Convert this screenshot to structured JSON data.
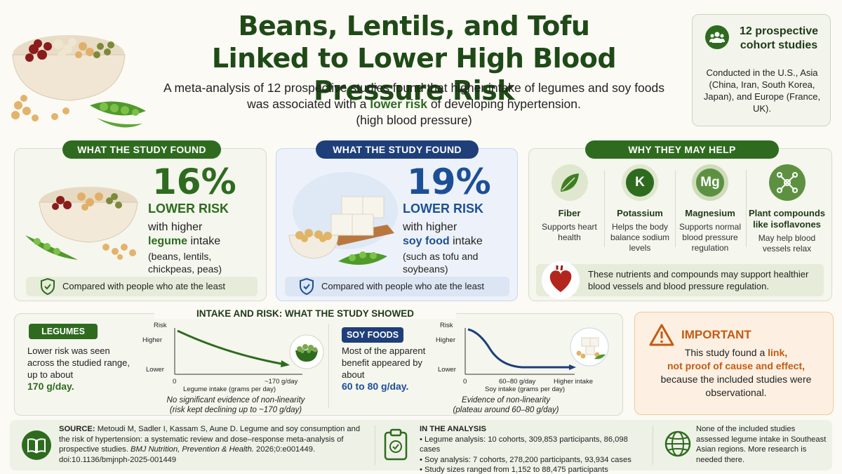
{
  "header": {
    "title_line1": "Beans, Lentils, and Tofu",
    "title_line2": "Linked to Lower High Blood Pressure Risk",
    "subtitle_part1": "A meta-analysis of 12 prospective studies found that higher intake of legumes and soy foods was associated with a ",
    "subtitle_highlight": "lower risk",
    "subtitle_part2": " of developing hypertension.",
    "subtitle_line3": "(high blood pressure)"
  },
  "cohort": {
    "icon": "people-icon",
    "title": "12 prospective cohort studies",
    "text": "Conducted in the U.S., Asia (China, Iran, South Korea, Japan), and Europe (France, UK)."
  },
  "legume_panel": {
    "label": "WHAT THE STUDY FOUND",
    "percent": "16%",
    "lower_risk": "LOWER RISK",
    "with_higher": "with higher",
    "food": "legume",
    "intake": " intake",
    "examples": "(beans, lentils, chickpeas, peas)",
    "compared": "Compared with people who ate the least",
    "accent": "#2e6b1f"
  },
  "soy_panel": {
    "label": "WHAT THE STUDY FOUND",
    "percent": "19%",
    "lower_risk": "LOWER RISK",
    "with_higher": "with higher",
    "food": "soy food",
    "intake": " intake",
    "examples": "(such as tofu and soybeans)",
    "compared": "Compared with people who ate the least",
    "accent": "#1d4f96"
  },
  "why_panel": {
    "label": "WHY THEY MAY HELP",
    "nutrients": [
      {
        "icon": "leaf-icon",
        "title": "Fiber",
        "text": "Supports heart health"
      },
      {
        "icon": "potassium-icon",
        "symbol": "K",
        "title": "Potassium",
        "text": "Helps the body balance sodium levels"
      },
      {
        "icon": "magnesium-icon",
        "symbol": "Mg",
        "title": "Magnesium",
        "text": "Supports normal blood pressure regulation"
      },
      {
        "icon": "molecule-icon",
        "title": "Plant compounds like isoflavones",
        "text": "May help blood vessels relax"
      }
    ],
    "summary": "These nutrients and compounds may support healthier blood vessels and blood pressure regulation."
  },
  "intake_section": {
    "title": "INTAKE AND RISK: WHAT THE STUDY SHOWED",
    "legumes": {
      "tag": "LEGUMES",
      "text": "Lower risk was seen across the studied range, up to about",
      "value": "170 g/day.",
      "note_line1": "No significant evidence of non-linearity",
      "note_line2": "(risk kept declining up to ~170 g/day)"
    },
    "soy": {
      "tag": "SOY FOODS",
      "text": "Most of the apparent benefit appeared by about",
      "value": "60 to 80 g/day.",
      "note_line1": "Evidence of non-linearity",
      "note_line2": "(plateau around 60–80 g/day)"
    }
  },
  "chart_data": [
    {
      "type": "line",
      "ylabel": "Risk",
      "xlabel": "Legume intake (grams per day)",
      "y_ticks": [
        "Higher",
        "Lower"
      ],
      "x_ticks": [
        "0",
        "~170 g/day"
      ],
      "shape": "steady decline",
      "x": [
        0,
        170
      ],
      "y_relative": [
        1.0,
        0.3
      ]
    },
    {
      "type": "line",
      "ylabel": "Risk",
      "xlabel": "Soy intake (grams per day)",
      "y_ticks": [
        "Higher",
        "Lower"
      ],
      "x_ticks": [
        "0",
        "60–80 g/day",
        "Higher intake"
      ],
      "shape": "decline then plateau"
    }
  ],
  "important": {
    "title": "IMPORTANT",
    "text1": "This study found a ",
    "link": "link,",
    "not_proof": "not proof of cause and effect,",
    "text2": "because the included studies were observational."
  },
  "footer": {
    "source_label": "SOURCE:",
    "source_text": " Metoudi M, Sadler I, Kassam S, Aune D. Legume and soy consumption and the risk of hypertension: a systematic review and dose–response meta-analysis of prospective studies.",
    "journal": "BMJ Nutrition, Prevention & Health.",
    "citation": " 2026;0:e001449.",
    "doi": "doi:10.1136/bmjnph-2025-001449",
    "analysis_title": "IN THE ANALYSIS",
    "analysis_items": [
      "• Legume analysis: 10 cohorts, 309,853 participants, 86,098 cases",
      "• Soy analysis: 7 cohorts, 278,200 participants, 93,934 cases",
      "• Study sizes ranged from 1,152 to 88,475 participants"
    ],
    "note": "None of the included studies assessed legume intake in Southeast Asian regions. More research is needed there."
  }
}
